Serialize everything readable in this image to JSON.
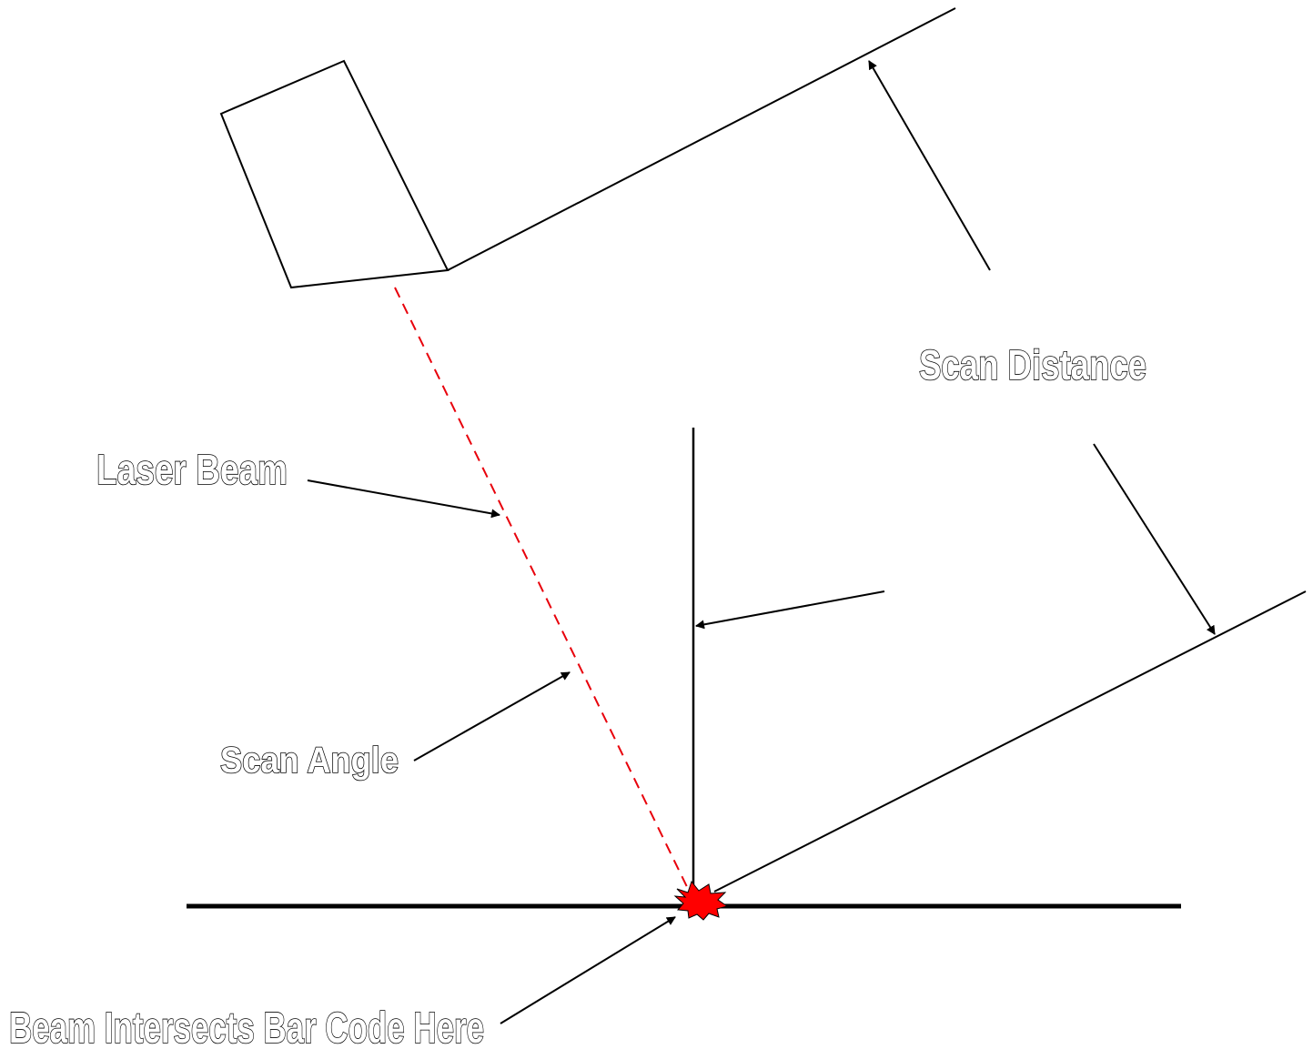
{
  "labels": {
    "scan_distance": "Scan Distance",
    "laser_beam": "Laser Beam",
    "scan_angle": "Scan Angle",
    "beam_intersects": "Beam Intersects Bar Code Here"
  },
  "colors": {
    "line": "#000000",
    "beam": "#e8000b",
    "burst": "#ff0000"
  }
}
